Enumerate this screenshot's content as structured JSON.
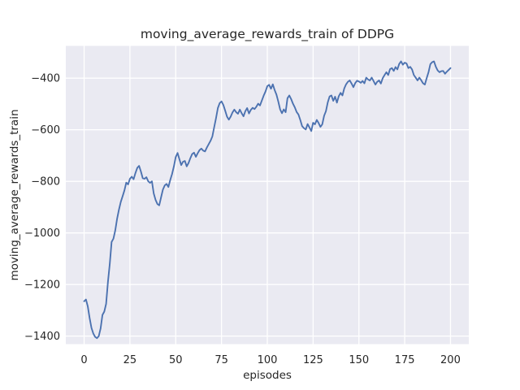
{
  "figure": {
    "background": "#ffffff"
  },
  "chart_data": {
    "type": "line",
    "title": "moving_average_rewards_train of DDPG",
    "xlabel": "episodes",
    "ylabel": "moving_average_rewards_train",
    "grid": true,
    "legend": false,
    "xlim": [
      -10,
      210
    ],
    "ylim": [
      -1431,
      -275
    ],
    "xticks": {
      "values": [
        0,
        25,
        50,
        75,
        100,
        125,
        150,
        175,
        200
      ],
      "labels": [
        "0",
        "25",
        "50",
        "75",
        "100",
        "125",
        "150",
        "175",
        "200"
      ]
    },
    "yticks": {
      "values": [
        -400,
        -600,
        -800,
        -1000,
        -1200,
        -1400
      ],
      "labels": [
        "−400",
        "−600",
        "−800",
        "−1000",
        "−1200",
        "−1400"
      ]
    },
    "style": {
      "plot_bg": "#EAEAF2",
      "grid_color": "#FFFFFF",
      "grid_width": 1.3,
      "text_color": "#262626",
      "line_color": "#4C72B0",
      "line_width": 1.9
    },
    "series": [
      {
        "name": "moving_average_rewards_train",
        "color": "#4C72B0",
        "x_start": 0,
        "x_step": 1,
        "y": [
          -1265,
          -1258,
          -1285,
          -1330,
          -1368,
          -1390,
          -1403,
          -1408,
          -1400,
          -1370,
          -1318,
          -1305,
          -1275,
          -1190,
          -1120,
          -1035,
          -1022,
          -990,
          -945,
          -910,
          -880,
          -858,
          -835,
          -805,
          -812,
          -790,
          -782,
          -792,
          -768,
          -748,
          -740,
          -762,
          -788,
          -790,
          -784,
          -800,
          -806,
          -800,
          -847,
          -872,
          -888,
          -893,
          -862,
          -832,
          -816,
          -810,
          -822,
          -795,
          -772,
          -742,
          -706,
          -690,
          -714,
          -737,
          -724,
          -721,
          -742,
          -729,
          -710,
          -694,
          -689,
          -705,
          -691,
          -679,
          -673,
          -681,
          -684,
          -669,
          -656,
          -643,
          -626,
          -590,
          -555,
          -516,
          -497,
          -490,
          -504,
          -526,
          -549,
          -561,
          -549,
          -533,
          -522,
          -532,
          -538,
          -522,
          -536,
          -548,
          -528,
          -516,
          -537,
          -523,
          -515,
          -520,
          -511,
          -499,
          -506,
          -487,
          -468,
          -452,
          -431,
          -426,
          -441,
          -424,
          -446,
          -464,
          -491,
          -521,
          -536,
          -521,
          -532,
          -478,
          -467,
          -481,
          -499,
          -513,
          -531,
          -541,
          -562,
          -586,
          -594,
          -599,
          -578,
          -591,
          -605,
          -573,
          -579,
          -562,
          -574,
          -589,
          -579,
          -546,
          -528,
          -494,
          -471,
          -467,
          -488,
          -472,
          -495,
          -470,
          -457,
          -467,
          -440,
          -424,
          -414,
          -409,
          -421,
          -435,
          -419,
          -410,
          -413,
          -418,
          -411,
          -420,
          -398,
          -405,
          -409,
          -398,
          -411,
          -425,
          -414,
          -409,
          -421,
          -400,
          -388,
          -377,
          -388,
          -365,
          -361,
          -372,
          -357,
          -366,
          -345,
          -335,
          -348,
          -340,
          -343,
          -361,
          -356,
          -366,
          -388,
          -398,
          -409,
          -398,
          -408,
          -420,
          -425,
          -400,
          -377,
          -346,
          -338,
          -335,
          -356,
          -370,
          -377,
          -373,
          -372,
          -383,
          -375,
          -368,
          -361
        ]
      }
    ]
  }
}
